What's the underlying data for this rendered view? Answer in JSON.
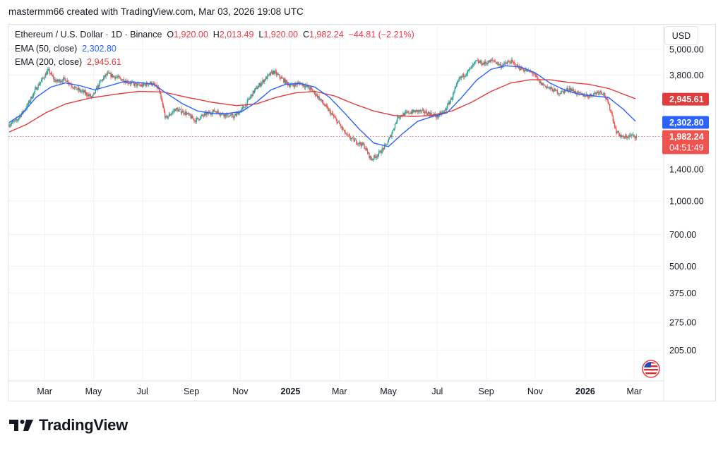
{
  "header": {
    "credit": "mastermm66 created with TradingView.com, Mar 03, 2026 19:08 UTC"
  },
  "legend": {
    "symbol": "Ethereum / U.S. Dollar · 1D · Binance",
    "o_label": "O",
    "o_value": "1,920.00",
    "h_label": "H",
    "h_value": "2,013.49",
    "l_label": "L",
    "l_value": "1,920.00",
    "c_label": "C",
    "c_value": "1,982.24",
    "change": "−44.81 (−2.21%)",
    "ema50_label": "EMA (50, close)",
    "ema50_value": "2,302.80",
    "ema200_label": "EMA (200, close)",
    "ema200_value": "2,945.61"
  },
  "currency_button": "USD",
  "branding": {
    "name": "TradingView"
  },
  "colors": {
    "up": "#26a69a",
    "down": "#ef5350",
    "ema50": "#2962ff",
    "ema200": "#e03c3c",
    "grid": "#f0f3fa",
    "axis_text": "#131722"
  },
  "chart_data": {
    "type": "candlestick",
    "symbol": "ETHUSD",
    "interval": "1D",
    "exchange": "Binance",
    "y_scale": "log",
    "ylim": [
      150,
      6500
    ],
    "y_ticks": [
      {
        "value": 5000,
        "label": "5,000.00"
      },
      {
        "value": 3800,
        "label": "3,800.00"
      },
      {
        "value": 1400,
        "label": "1,400.00"
      },
      {
        "value": 1000,
        "label": "1,000.00"
      },
      {
        "value": 700,
        "label": "700.00"
      },
      {
        "value": 500,
        "label": "500.00"
      },
      {
        "value": 375,
        "label": "375.00"
      },
      {
        "value": 275,
        "label": "275.00"
      },
      {
        "value": 205,
        "label": "205.00"
      }
    ],
    "x_ticks": [
      {
        "t": 0.15,
        "label": "Mar",
        "bold": false
      },
      {
        "t": 2.15,
        "label": "May",
        "bold": false
      },
      {
        "t": 4.15,
        "label": "Jul",
        "bold": false
      },
      {
        "t": 6.15,
        "label": "Sep",
        "bold": false
      },
      {
        "t": 8.15,
        "label": "Nov",
        "bold": false
      },
      {
        "t": 10.2,
        "label": "2025",
        "bold": true
      },
      {
        "t": 12.2,
        "label": "Mar",
        "bold": false
      },
      {
        "t": 14.2,
        "label": "May",
        "bold": false
      },
      {
        "t": 16.2,
        "label": "Jul",
        "bold": false
      },
      {
        "t": 18.2,
        "label": "Sep",
        "bold": false
      },
      {
        "t": 20.2,
        "label": "Nov",
        "bold": false
      },
      {
        "t": 22.25,
        "label": "2026",
        "bold": true
      },
      {
        "t": 24.25,
        "label": "Mar",
        "bold": false
      }
    ],
    "price_path": [
      [
        -1.3,
        2250
      ],
      [
        -1.0,
        2350
      ],
      [
        -0.6,
        2700
      ],
      [
        -0.2,
        3300
      ],
      [
        0.1,
        3700
      ],
      [
        0.3,
        4000
      ],
      [
        0.6,
        3550
      ],
      [
        1.0,
        3650
      ],
      [
        1.4,
        3300
      ],
      [
        1.8,
        3150
      ],
      [
        2.1,
        3000
      ],
      [
        2.4,
        3500
      ],
      [
        2.7,
        3850
      ],
      [
        3.0,
        3750
      ],
      [
        3.4,
        3600
      ],
      [
        3.8,
        3450
      ],
      [
        4.1,
        3400
      ],
      [
        4.5,
        3500
      ],
      [
        4.8,
        3300
      ],
      [
        5.1,
        2400
      ],
      [
        5.5,
        2650
      ],
      [
        5.9,
        2550
      ],
      [
        6.3,
        2350
      ],
      [
        6.7,
        2500
      ],
      [
        7.1,
        2600
      ],
      [
        7.5,
        2500
      ],
      [
        7.9,
        2450
      ],
      [
        8.3,
        2700
      ],
      [
        8.7,
        3200
      ],
      [
        9.1,
        3600
      ],
      [
        9.5,
        3950
      ],
      [
        9.8,
        3700
      ],
      [
        10.2,
        3400
      ],
      [
        10.6,
        3500
      ],
      [
        11.0,
        3300
      ],
      [
        11.3,
        3050
      ],
      [
        11.6,
        2750
      ],
      [
        11.9,
        2500
      ],
      [
        12.2,
        2250
      ],
      [
        12.5,
        2000
      ],
      [
        12.8,
        1900
      ],
      [
        13.2,
        1800
      ],
      [
        13.5,
        1550
      ],
      [
        13.8,
        1650
      ],
      [
        14.1,
        1800
      ],
      [
        14.3,
        2000
      ],
      [
        14.6,
        2450
      ],
      [
        15.0,
        2550
      ],
      [
        15.4,
        2600
      ],
      [
        15.8,
        2550
      ],
      [
        16.2,
        2450
      ],
      [
        16.5,
        2600
      ],
      [
        16.8,
        3000
      ],
      [
        17.1,
        3650
      ],
      [
        17.5,
        4000
      ],
      [
        17.8,
        4400
      ],
      [
        18.1,
        4300
      ],
      [
        18.5,
        4450
      ],
      [
        18.8,
        4200
      ],
      [
        19.2,
        4400
      ],
      [
        19.5,
        4150
      ],
      [
        19.8,
        4000
      ],
      [
        20.1,
        3900
      ],
      [
        20.4,
        3500
      ],
      [
        20.8,
        3300
      ],
      [
        21.2,
        3150
      ],
      [
        21.6,
        3300
      ],
      [
        22.0,
        3100
      ],
      [
        22.4,
        3050
      ],
      [
        22.8,
        3200
      ],
      [
        23.0,
        3150
      ],
      [
        23.3,
        2600
      ],
      [
        23.5,
        2100
      ],
      [
        23.8,
        1950
      ],
      [
        24.1,
        2000
      ],
      [
        24.35,
        1982
      ]
    ],
    "ema50_path": [
      [
        -1.3,
        2300
      ],
      [
        -0.8,
        2500
      ],
      [
        -0.2,
        3000
      ],
      [
        0.4,
        3350
      ],
      [
        1.0,
        3500
      ],
      [
        1.6,
        3400
      ],
      [
        2.2,
        3250
      ],
      [
        2.8,
        3400
      ],
      [
        3.4,
        3550
      ],
      [
        4.0,
        3520
      ],
      [
        4.6,
        3450
      ],
      [
        5.2,
        3100
      ],
      [
        5.8,
        2800
      ],
      [
        6.4,
        2600
      ],
      [
        7.0,
        2530
      ],
      [
        7.6,
        2530
      ],
      [
        8.2,
        2580
      ],
      [
        8.8,
        2850
      ],
      [
        9.4,
        3250
      ],
      [
        10.0,
        3450
      ],
      [
        10.6,
        3480
      ],
      [
        11.2,
        3350
      ],
      [
        11.8,
        3000
      ],
      [
        12.4,
        2550
      ],
      [
        13.0,
        2150
      ],
      [
        13.6,
        1850
      ],
      [
        14.2,
        1780
      ],
      [
        14.8,
        2050
      ],
      [
        15.4,
        2330
      ],
      [
        16.0,
        2450
      ],
      [
        16.6,
        2550
      ],
      [
        17.2,
        3000
      ],
      [
        17.8,
        3600
      ],
      [
        18.4,
        4050
      ],
      [
        19.0,
        4200
      ],
      [
        19.6,
        4150
      ],
      [
        20.2,
        3900
      ],
      [
        20.8,
        3500
      ],
      [
        21.4,
        3250
      ],
      [
        22.0,
        3100
      ],
      [
        22.6,
        3050
      ],
      [
        23.2,
        3000
      ],
      [
        23.8,
        2650
      ],
      [
        24.35,
        2302.8
      ]
    ],
    "ema200_path": [
      [
        -1.3,
        2080
      ],
      [
        -0.6,
        2250
      ],
      [
        0.2,
        2550
      ],
      [
        1.0,
        2800
      ],
      [
        2.0,
        2980
      ],
      [
        3.0,
        3100
      ],
      [
        4.0,
        3200
      ],
      [
        5.0,
        3180
      ],
      [
        6.0,
        3000
      ],
      [
        7.0,
        2850
      ],
      [
        8.0,
        2750
      ],
      [
        8.8,
        2800
      ],
      [
        9.6,
        3000
      ],
      [
        10.4,
        3150
      ],
      [
        11.2,
        3200
      ],
      [
        12.0,
        3050
      ],
      [
        12.8,
        2800
      ],
      [
        13.6,
        2600
      ],
      [
        14.4,
        2480
      ],
      [
        15.2,
        2450
      ],
      [
        16.0,
        2480
      ],
      [
        16.8,
        2600
      ],
      [
        17.6,
        2850
      ],
      [
        18.4,
        3200
      ],
      [
        19.2,
        3500
      ],
      [
        20.0,
        3620
      ],
      [
        20.8,
        3620
      ],
      [
        21.6,
        3520
      ],
      [
        22.4,
        3450
      ],
      [
        23.2,
        3300
      ],
      [
        24.35,
        2945.61
      ]
    ],
    "price_labels": [
      {
        "name": "ema200-price-tag",
        "value": 2945.61,
        "label": "2,945.61",
        "color": "#e03c3c"
      },
      {
        "name": "ema50-price-tag",
        "value": 2302.8,
        "label": "2,302.80",
        "color": "#2962ff"
      },
      {
        "name": "last-price-tag",
        "value": 1982.24,
        "label": "1,982.24",
        "countdown": "04:51:49",
        "color": "#ef5350"
      }
    ],
    "last_price": 1982.24
  }
}
